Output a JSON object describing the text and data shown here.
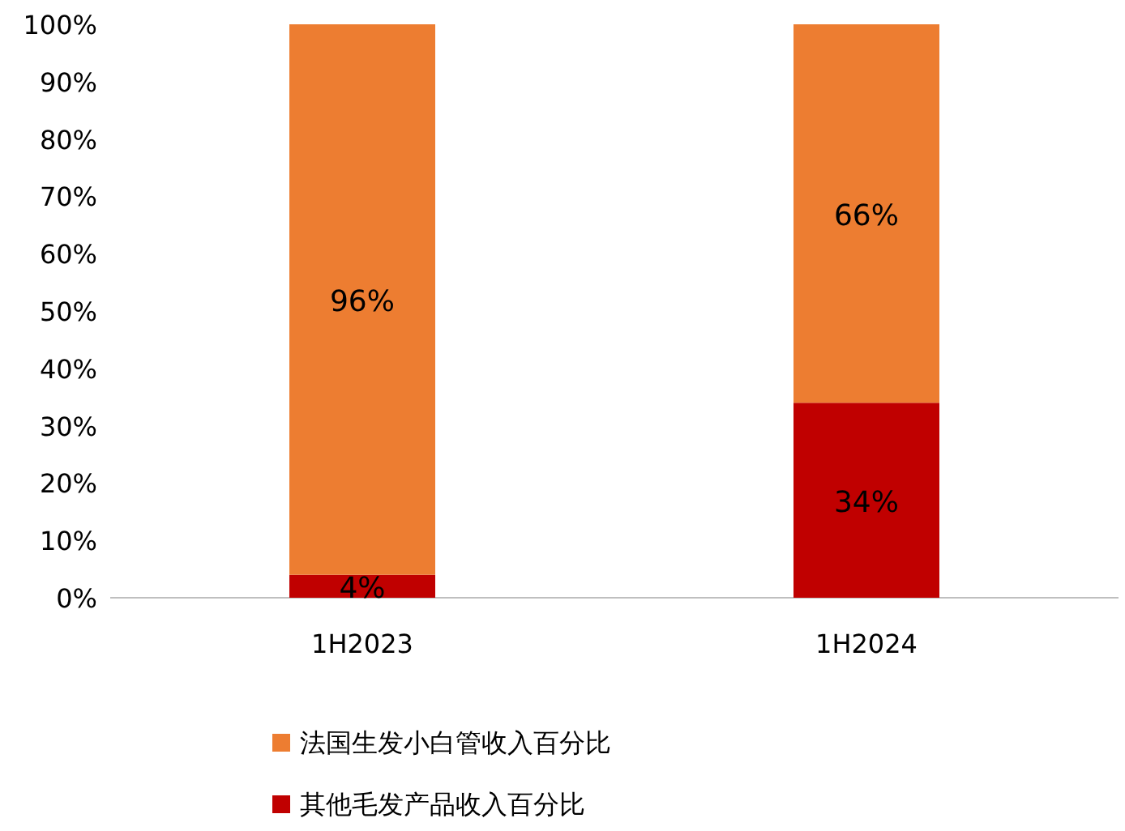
{
  "chart_data": {
    "type": "bar",
    "stacked": true,
    "categories": [
      "1H2023",
      "1H2024"
    ],
    "series": [
      {
        "name": "其他毛发产品收入百分比",
        "color": "#c00000",
        "values": [
          4,
          34
        ],
        "value_labels": [
          "4%",
          "34%"
        ]
      },
      {
        "name": "法国生发小白管收入百分比",
        "color": "#ed7d31",
        "values": [
          96,
          66
        ],
        "value_labels": [
          "96%",
          "66%"
        ]
      }
    ],
    "ylim": [
      0,
      100
    ],
    "yticks": [
      {
        "value": 0,
        "label": "0%"
      },
      {
        "value": 10,
        "label": "10%"
      },
      {
        "value": 20,
        "label": "20%"
      },
      {
        "value": 30,
        "label": "30%"
      },
      {
        "value": 40,
        "label": "40%"
      },
      {
        "value": 50,
        "label": "50%"
      },
      {
        "value": 60,
        "label": "60%"
      },
      {
        "value": 70,
        "label": "70%"
      },
      {
        "value": 80,
        "label": "80%"
      },
      {
        "value": 90,
        "label": "90%"
      },
      {
        "value": 100,
        "label": "100%"
      }
    ],
    "grid": false,
    "legend": "bottom"
  }
}
